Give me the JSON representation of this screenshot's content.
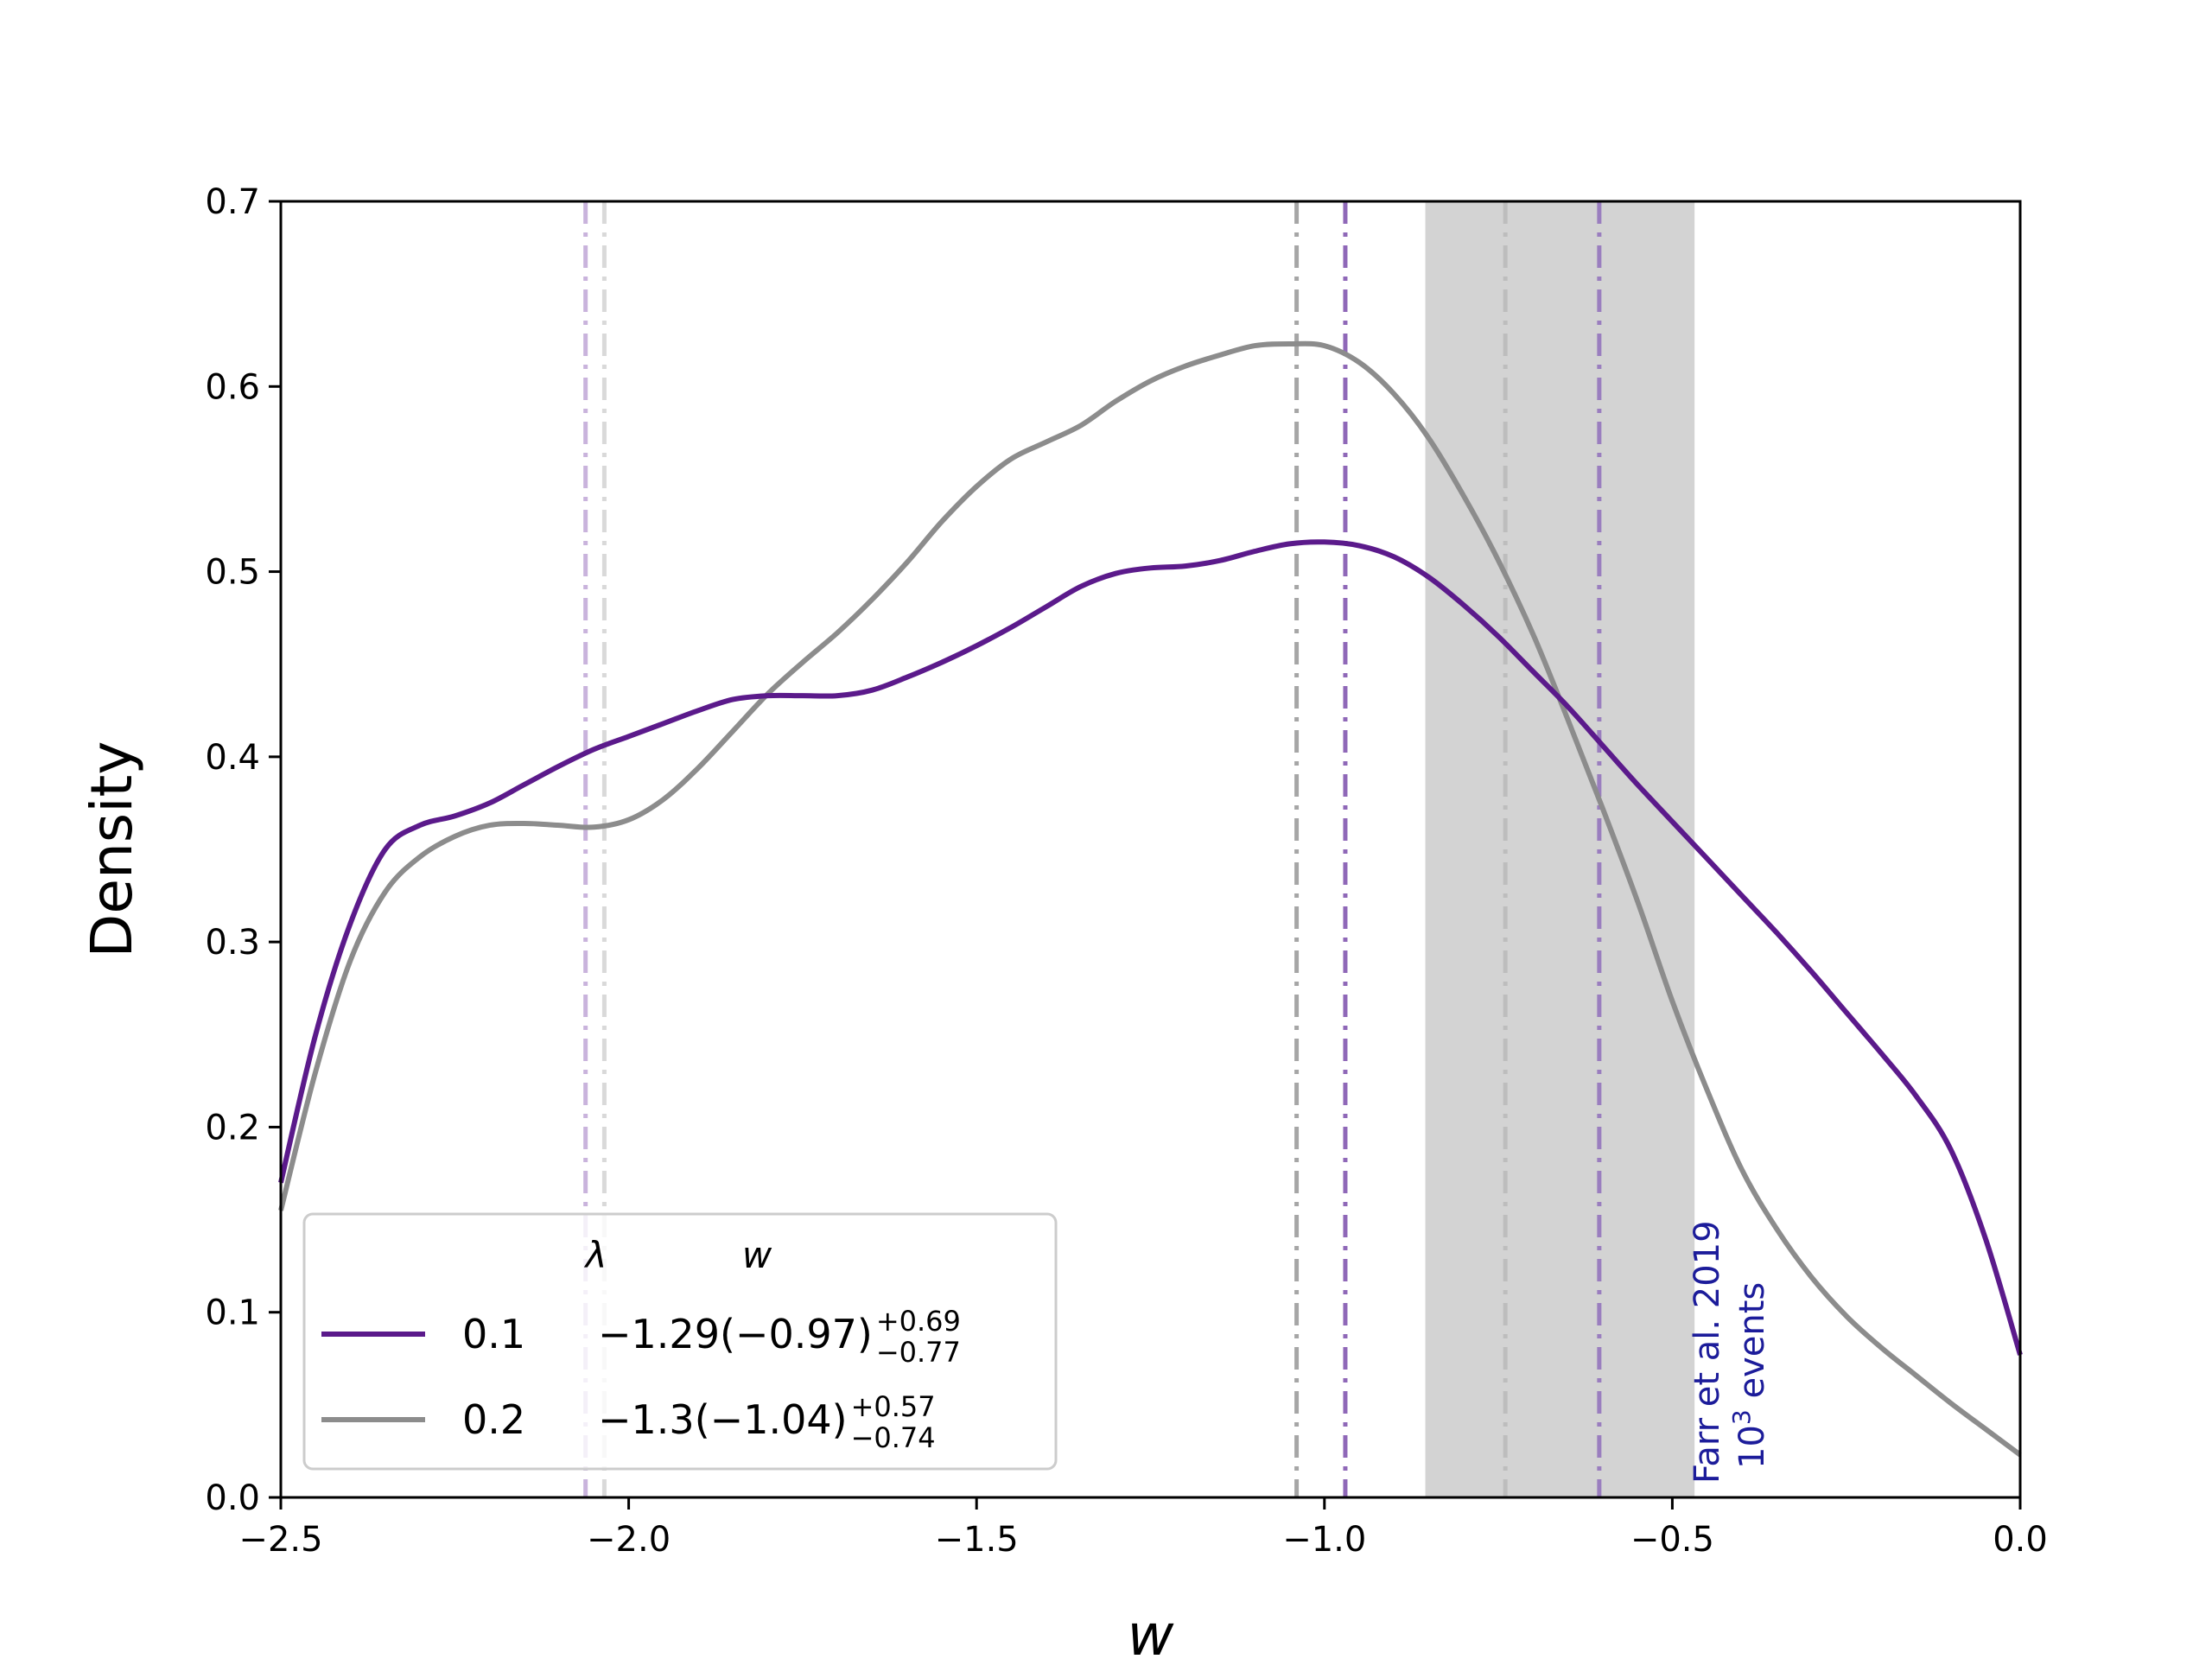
{
  "chart_data": {
    "type": "line",
    "title": "",
    "xlabel": "w",
    "ylabel": "Density",
    "xlim": [
      -2.5,
      0.0
    ],
    "ylim": [
      0.0,
      0.7
    ],
    "xticks": [
      -2.5,
      -2.0,
      -1.5,
      -1.0,
      -0.5,
      0.0
    ],
    "xtick_labels": [
      "−2.5",
      "−2.0",
      "−1.5",
      "−1.0",
      "−0.5",
      "0.0"
    ],
    "yticks": [
      0.0,
      0.1,
      0.2,
      0.3,
      0.4,
      0.5,
      0.6,
      0.7
    ],
    "ytick_labels": [
      "0.0",
      "0.1",
      "0.2",
      "0.3",
      "0.4",
      "0.5",
      "0.6",
      "0.7"
    ],
    "grid": false,
    "series": [
      {
        "name": "0.1",
        "lambda": "0.1",
        "w_label": "−1.29(−0.97)",
        "w_upper": "+0.69",
        "w_lower": "−0.77",
        "color": "#5b1a8b",
        "x": [
          -2.5,
          -2.45,
          -2.4,
          -2.35,
          -2.3,
          -2.25,
          -2.2,
          -2.15,
          -2.1,
          -2.05,
          -2.0,
          -1.95,
          -1.9,
          -1.85,
          -1.8,
          -1.75,
          -1.7,
          -1.65,
          -1.6,
          -1.55,
          -1.5,
          -1.45,
          -1.4,
          -1.35,
          -1.3,
          -1.25,
          -1.2,
          -1.15,
          -1.1,
          -1.05,
          -1.0,
          -0.95,
          -0.9,
          -0.85,
          -0.8,
          -0.75,
          -0.7,
          -0.65,
          -0.6,
          -0.55,
          -0.5,
          -0.45,
          -0.4,
          -0.35,
          -0.3,
          -0.25,
          -0.2,
          -0.15,
          -0.1,
          -0.05,
          0.0
        ],
        "y": [
          0.17,
          0.25,
          0.31,
          0.35,
          0.363,
          0.368,
          0.375,
          0.385,
          0.395,
          0.404,
          0.411,
          0.418,
          0.425,
          0.431,
          0.433,
          0.433,
          0.433,
          0.436,
          0.443,
          0.451,
          0.46,
          0.47,
          0.481,
          0.492,
          0.499,
          0.502,
          0.503,
          0.506,
          0.511,
          0.515,
          0.516,
          0.514,
          0.508,
          0.497,
          0.482,
          0.465,
          0.446,
          0.427,
          0.406,
          0.385,
          0.365,
          0.345,
          0.325,
          0.305,
          0.284,
          0.262,
          0.24,
          0.217,
          0.188,
          0.14,
          0.077
        ]
      },
      {
        "name": "0.2",
        "lambda": "0.2",
        "w_label": "−1.3(−1.04)",
        "w_upper": "+0.57",
        "w_lower": "−0.74",
        "color": "#8c8c8c",
        "x": [
          -2.5,
          -2.45,
          -2.4,
          -2.35,
          -2.3,
          -2.25,
          -2.2,
          -2.15,
          -2.1,
          -2.05,
          -2.0,
          -1.95,
          -1.9,
          -1.85,
          -1.8,
          -1.75,
          -1.7,
          -1.65,
          -1.6,
          -1.55,
          -1.5,
          -1.45,
          -1.4,
          -1.35,
          -1.3,
          -1.25,
          -1.2,
          -1.15,
          -1.1,
          -1.05,
          -1.0,
          -0.95,
          -0.9,
          -0.85,
          -0.8,
          -0.75,
          -0.7,
          -0.65,
          -0.6,
          -0.55,
          -0.5,
          -0.45,
          -0.4,
          -0.35,
          -0.3,
          -0.25,
          -0.2,
          -0.15,
          -0.1,
          -0.05,
          0.0
        ],
        "y": [
          0.155,
          0.23,
          0.29,
          0.327,
          0.346,
          0.357,
          0.363,
          0.364,
          0.363,
          0.362,
          0.366,
          0.377,
          0.394,
          0.414,
          0.434,
          0.451,
          0.467,
          0.485,
          0.505,
          0.527,
          0.546,
          0.561,
          0.57,
          0.579,
          0.592,
          0.603,
          0.611,
          0.617,
          0.622,
          0.623,
          0.622,
          0.613,
          0.596,
          0.572,
          0.541,
          0.506,
          0.466,
          0.42,
          0.372,
          0.322,
          0.268,
          0.22,
          0.177,
          0.145,
          0.119,
          0.098,
          0.081,
          0.066,
          0.051,
          0.037,
          0.023
        ]
      }
    ],
    "vertical_lines": [
      {
        "x": -2.062,
        "color": "#c9b3dc",
        "style": "dashdot"
      },
      {
        "x": -2.035,
        "color": "#d9d9d9",
        "style": "dashdot"
      },
      {
        "x": -1.04,
        "color": "#a6a6a6",
        "style": "dashdot"
      },
      {
        "x": -0.97,
        "color": "#8f68b8",
        "style": "dashdot"
      },
      {
        "x": -0.74,
        "color": "#bdbdbd",
        "style": "dashdot"
      },
      {
        "x": -0.605,
        "color": "#9a7ebf",
        "style": "dashdot"
      }
    ],
    "shaded_band": {
      "x0": -0.855,
      "x1": -0.468,
      "color": "#d3d3d3"
    },
    "annotation": {
      "lines": [
        "Farr et al. 2019",
        "10",
        "3",
        " events"
      ],
      "x": -0.468,
      "color": "#1c1c9a"
    },
    "legend": {
      "placement": "lower-left",
      "header_lambda": "λ",
      "header_w": "w"
    }
  }
}
